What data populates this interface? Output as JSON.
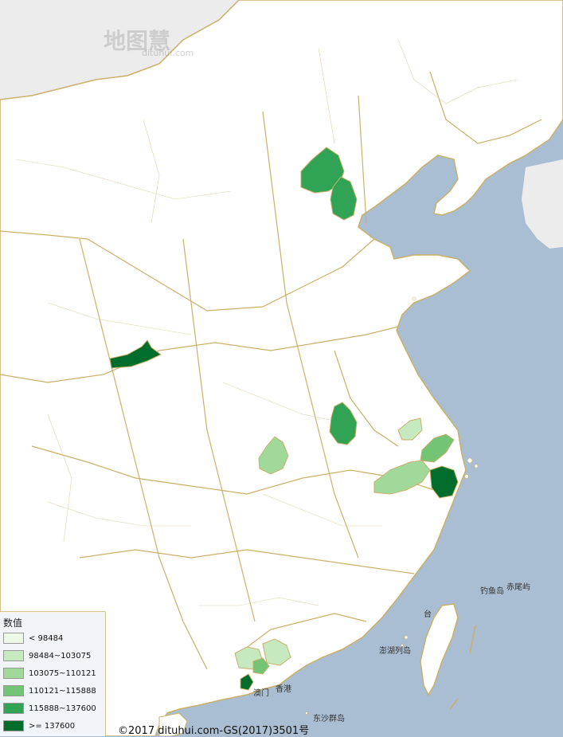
{
  "watermark": {
    "brand": "地图慧",
    "site": "dituhui.com"
  },
  "copyright": "©2017 dituhui.com-GS(2017)3501号",
  "place_labels": {
    "diaoyu": "钓鱼岛",
    "chiwei": "赤尾屿",
    "penghu": "澎湖列岛",
    "xianggang": "香港",
    "aomen": "澳门",
    "dongsha": "东沙群岛",
    "tai": "台"
  },
  "legend": {
    "title": "数值",
    "items": [
      {
        "label": "< 98484",
        "color": "#edf8e9"
      },
      {
        "label": "98484~103075",
        "color": "#c7e9c0"
      },
      {
        "label": "103075~110121",
        "color": "#a1d99b"
      },
      {
        "label": "110121~115888",
        "color": "#74c476"
      },
      {
        "label": "115888~137600",
        "color": "#31a354"
      },
      {
        "label": ">= 137600",
        "color": "#006d2c"
      }
    ]
  },
  "colors": {
    "sea": "#a9bed2",
    "land": "#ffffff",
    "foreign": "#ececec",
    "border": "#c9b06a"
  }
}
